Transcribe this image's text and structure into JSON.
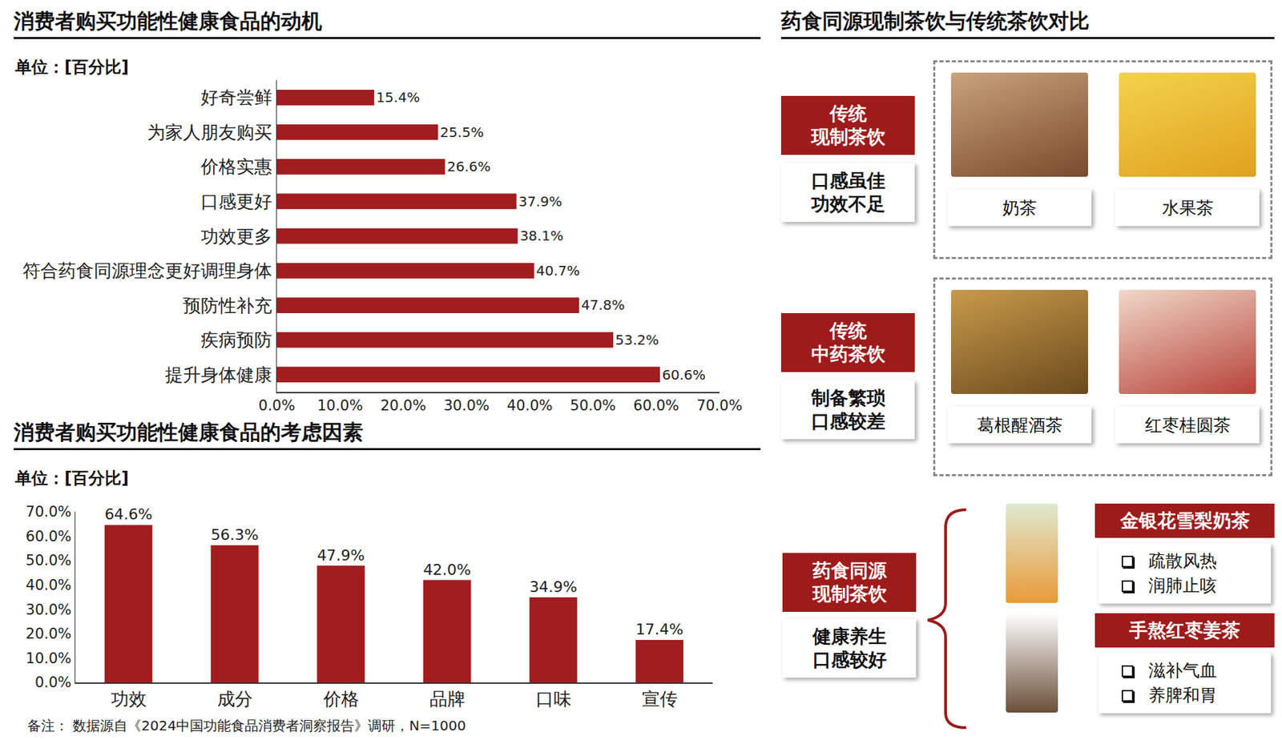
{
  "chart_data": [
    {
      "type": "bar",
      "orientation": "horizontal",
      "title": "消费者购买功能性健康食品的动机",
      "subtitle": "单位：[百分比]",
      "categories": [
        "好奇尝鲜",
        "为家人朋友购买",
        "价格实惠",
        "口感更好",
        "功效更多",
        "符合药食同源理念更好调理身体",
        "预防性补充",
        "疾病预防",
        "提升身体健康"
      ],
      "values": [
        15.4,
        25.5,
        26.6,
        37.9,
        38.1,
        40.7,
        47.8,
        53.2,
        60.6
      ],
      "value_labels": [
        "15.4%",
        "25.5%",
        "26.6%",
        "37.9%",
        "38.1%",
        "40.7%",
        "47.8%",
        "53.2%",
        "60.6%"
      ],
      "color": "#a11d1f",
      "data_labels": true,
      "grid": false,
      "xlim": [
        0,
        70
      ],
      "xticks": [
        {
          "value": 0,
          "label": "0.0%"
        },
        {
          "value": 10,
          "label": "10.0%"
        },
        {
          "value": 20,
          "label": "20.0%"
        },
        {
          "value": 30,
          "label": "30.0%"
        },
        {
          "value": 40,
          "label": "40.0%"
        },
        {
          "value": 50,
          "label": "50.0%"
        },
        {
          "value": 60,
          "label": "60.0%"
        },
        {
          "value": 70,
          "label": "70.0%"
        }
      ]
    },
    {
      "type": "bar",
      "title": "消费者购买功能性健康食品的考虑因素",
      "subtitle": "单位：[百分比]",
      "categories": [
        "功效",
        "成分",
        "价格",
        "品牌",
        "口味",
        "宣传"
      ],
      "values": [
        64.6,
        56.3,
        47.9,
        42.0,
        34.9,
        17.4
      ],
      "value_labels": [
        "64.6%",
        "56.3%",
        "47.9%",
        "42.0%",
        "34.9%",
        "17.4%"
      ],
      "color": "#a11d1f",
      "data_labels": true,
      "grid": false,
      "ylim": [
        0,
        70
      ],
      "yticks": [
        {
          "value": 0,
          "label": "0.0%"
        },
        {
          "value": 10,
          "label": "10.0%"
        },
        {
          "value": 20,
          "label": "20.0%"
        },
        {
          "value": 30,
          "label": "30.0%"
        },
        {
          "value": 40,
          "label": "40.0%"
        },
        {
          "value": 50,
          "label": "50.0%"
        },
        {
          "value": 60,
          "label": "60.0%"
        },
        {
          "value": 70,
          "label": "70.0%"
        }
      ]
    }
  ],
  "comparison": {
    "title": "药食同源现制茶饮与传统茶饮对比",
    "groups": [
      {
        "label": [
          "传统",
          "现制茶饮"
        ],
        "description": [
          "口感虽佳",
          "功效不足"
        ],
        "items": [
          "奶茶",
          "水果茶"
        ]
      },
      {
        "label": [
          "传统",
          "中药茶饮"
        ],
        "description": [
          "制备繁琐",
          "口感较差"
        ],
        "items": [
          "葛根醒酒茶",
          "红枣桂圆茶"
        ]
      },
      {
        "label": [
          "药食同源",
          "现制茶饮"
        ],
        "description": [
          "健康养生",
          "口感较好"
        ],
        "products": [
          {
            "name": "金银花雪梨奶茶",
            "benefits": [
              "疏散风热",
              "润肺止咳"
            ]
          },
          {
            "name": "手熬红枣姜茶",
            "benefits": [
              "滋补气血",
              "养脾和胃"
            ]
          }
        ]
      }
    ]
  },
  "note": "备注：  数据源自《2024中国功能食品消费者洞察报告》调研，N=1000"
}
